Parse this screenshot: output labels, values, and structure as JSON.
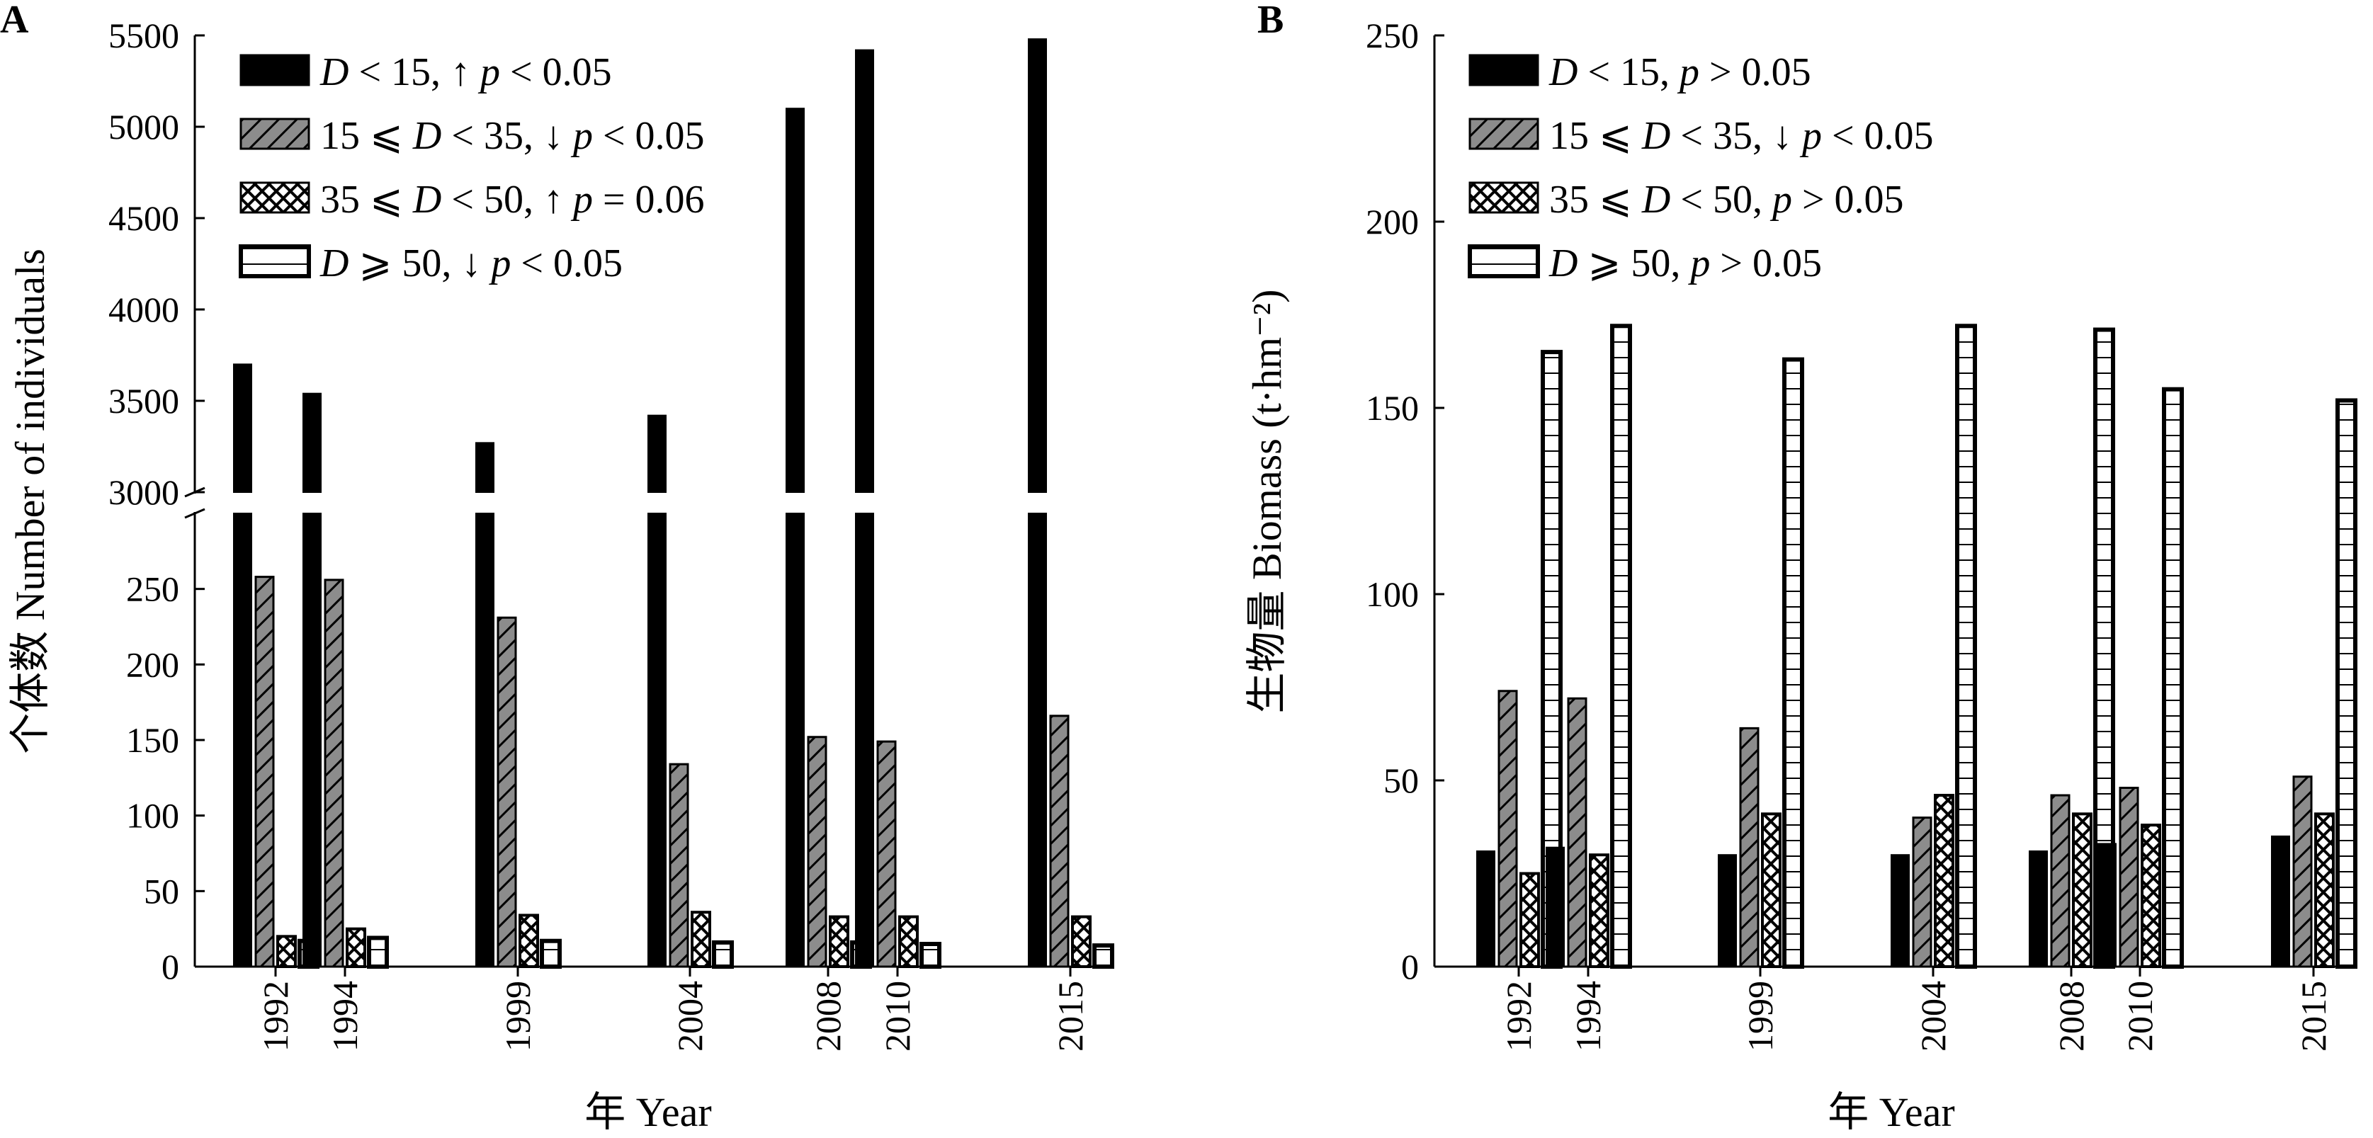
{
  "chart_data": [
    {
      "panel_label": "A",
      "type": "bar",
      "title": "",
      "xlabel": "年 Year",
      "ylabel": "个体数 Number of individuals",
      "categories": [
        "1992",
        "1994",
        "1999",
        "2004",
        "2008",
        "2010",
        "2015"
      ],
      "y_axis": {
        "broken": true,
        "lower_range": [
          0,
          300
        ],
        "lower_ticks": [
          "0",
          "50",
          "100",
          "150",
          "200",
          "250"
        ],
        "upper_range": [
          3000,
          5500
        ],
        "upper_ticks": [
          "3000",
          "3500",
          "4000",
          "4500",
          "5000",
          "5500"
        ]
      },
      "legend_position": "top-left",
      "series": [
        {
          "name": "D < 15, ↑ p < 0.05",
          "legend": {
            "pre": "",
            "var": "D",
            "mid": " < 15, ↑ ",
            "p": "p",
            "post": " < 0.05"
          },
          "pattern": "solid",
          "values": [
            3700,
            3540,
            3270,
            3420,
            5100,
            5420,
            5480
          ]
        },
        {
          "name": "15 ⩽ D < 35, ↓ p < 0.05",
          "legend": {
            "pre": "15 ⩽ ",
            "var": "D",
            "mid": " < 35, ↓ ",
            "p": "p",
            "post": " < 0.05"
          },
          "pattern": "diagonal",
          "values": [
            258,
            256,
            231,
            134,
            152,
            149,
            166
          ]
        },
        {
          "name": "35 ⩽ D < 50, ↑ p = 0.06",
          "legend": {
            "pre": "35 ⩽ ",
            "var": "D",
            "mid": " < 50, ↑ ",
            "p": "p",
            "post": " = 0.06"
          },
          "pattern": "crosshatch",
          "values": [
            20,
            25,
            34,
            36,
            33,
            33,
            33
          ]
        },
        {
          "name": "D ⩾ 50, ↓ p < 0.05",
          "legend": {
            "pre": "",
            "var": "D",
            "mid": " ⩾ 50, ↓ ",
            "p": "p",
            "post": " < 0.05"
          },
          "pattern": "hollow",
          "values": [
            17,
            19,
            17,
            16,
            16,
            15,
            14
          ]
        }
      ]
    },
    {
      "panel_label": "B",
      "type": "bar",
      "title": "",
      "xlabel": "年 Year",
      "ylabel": "生物量 Biomass (t·hm⁻²)",
      "categories": [
        "1992",
        "1994",
        "1999",
        "2004",
        "2008",
        "2010",
        "2015"
      ],
      "ylim": [
        0,
        250
      ],
      "y_ticks": [
        "0",
        "50",
        "100",
        "150",
        "200",
        "250"
      ],
      "legend_position": "top-left",
      "series": [
        {
          "name": "D < 15, p > 0.05",
          "legend": {
            "pre": "",
            "var": "D",
            "mid": " < 15, ",
            "p": "p",
            "post": " > 0.05"
          },
          "pattern": "solid",
          "values": [
            31,
            32,
            30,
            30,
            31,
            33,
            35
          ]
        },
        {
          "name": "15 ⩽ D < 35, ↓ p < 0.05",
          "legend": {
            "pre": "15 ⩽ ",
            "var": "D",
            "mid": " < 35, ↓ ",
            "p": "p",
            "post": " < 0.05"
          },
          "pattern": "diagonal",
          "values": [
            74,
            72,
            64,
            40,
            46,
            48,
            51
          ]
        },
        {
          "name": "35 ⩽ D < 50, p > 0.05",
          "legend": {
            "pre": "35 ⩽ ",
            "var": "D",
            "mid": " < 50,  ",
            "p": "p",
            "post": " > 0.05"
          },
          "pattern": "crosshatch",
          "values": [
            25,
            30,
            41,
            46,
            41,
            38,
            41
          ]
        },
        {
          "name": "D ⩾ 50, p > 0.05",
          "legend": {
            "pre": "",
            "var": "D",
            "mid": " ⩾ 50, ",
            "p": "p",
            "post": " > 0.05"
          },
          "pattern": "hollow",
          "values": [
            165,
            172,
            163,
            172,
            171,
            155,
            152
          ]
        }
      ]
    }
  ]
}
